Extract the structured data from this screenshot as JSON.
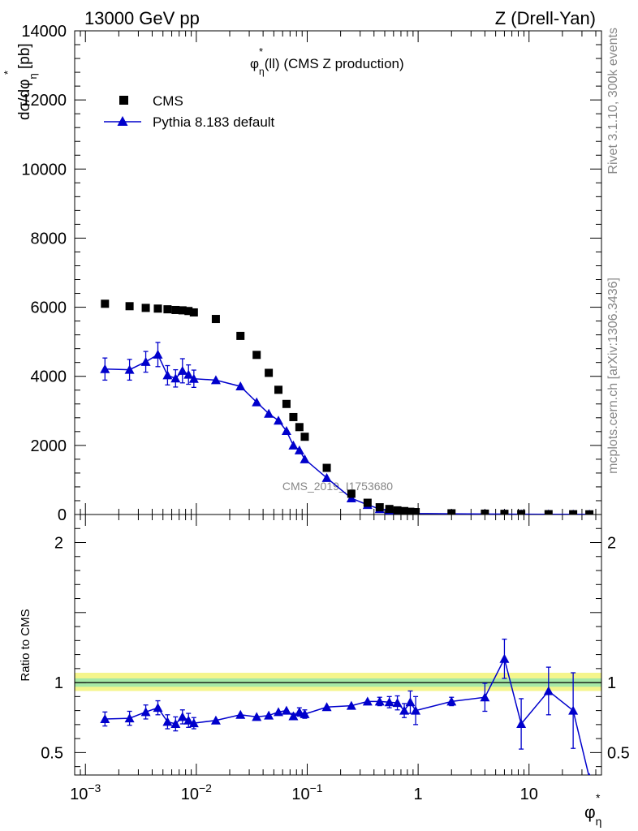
{
  "header": {
    "left": "13000 GeV pp",
    "right": "Z (Drell-Yan)"
  },
  "side_labels": {
    "rivet": "Rivet 3.1.10,  300k events",
    "mcplots": "mcplots.cern.ch [arXiv:1306.3436]"
  },
  "watermark": "CMS_2019_I1753680",
  "colors": {
    "mc": "#0000cc",
    "data": "#000000",
    "band_outer": "#f5f58c",
    "band_inner": "#a6e8a6",
    "gray_text": "#888888"
  },
  "chart_data": [
    {
      "type": "scatter",
      "title": "φ*η(ll) (CMS Z production)",
      "title_parts": {
        "main": "φ",
        "sup": "*",
        "sub": "η",
        "rest": "(ll) (CMS Z production)"
      },
      "ylabel": "dσ/dφ*η [pb]",
      "ylabel_parts": {
        "pre": "dσ/dφ",
        "sup": "*",
        "sub": "η",
        "post": " [pb]"
      },
      "xscale": "log",
      "xlim": [
        0.0008,
        45
      ],
      "ylim": [
        0,
        14000
      ],
      "y_ticks": [
        "0",
        "2000",
        "4000",
        "6000",
        "8000",
        "10000",
        "12000",
        "14000"
      ],
      "y_tick_values": [
        0,
        2000,
        4000,
        6000,
        8000,
        10000,
        12000,
        14000
      ],
      "legend_position": "top-left",
      "series": [
        {
          "name": "CMS",
          "marker": "square",
          "x": [
            0.0015,
            0.0025,
            0.0035,
            0.0045,
            0.0055,
            0.0065,
            0.0075,
            0.0085,
            0.0095,
            0.015,
            0.025,
            0.035,
            0.045,
            0.055,
            0.065,
            0.075,
            0.085,
            0.095,
            0.15,
            0.25,
            0.35,
            0.45,
            0.55,
            0.65,
            0.75,
            0.85,
            0.95,
            2,
            4,
            6,
            8.5,
            15,
            25,
            35
          ],
          "y": [
            6100,
            6030,
            5980,
            5960,
            5940,
            5920,
            5910,
            5890,
            5850,
            5660,
            5170,
            4620,
            4100,
            3610,
            3200,
            2820,
            2530,
            2250,
            1350,
            600,
            340,
            210,
            160,
            120,
            100,
            80,
            70,
            35,
            25,
            20,
            15,
            10,
            8,
            5
          ]
        },
        {
          "name": "Pythia 8.183 default",
          "marker": "triangle",
          "x": [
            0.0015,
            0.0025,
            0.0035,
            0.0045,
            0.0055,
            0.0065,
            0.0075,
            0.0085,
            0.0095,
            0.015,
            0.025,
            0.035,
            0.045,
            0.055,
            0.065,
            0.075,
            0.085,
            0.095,
            0.15,
            0.25,
            0.35,
            0.45,
            0.55,
            0.65,
            0.75,
            0.85,
            0.95,
            2,
            4,
            6,
            8.5,
            15,
            25,
            35
          ],
          "y": [
            4210,
            4190,
            4420,
            4630,
            4030,
            3940,
            4160,
            4050,
            3930,
            3890,
            3710,
            3250,
            2920,
            2720,
            2420,
            2000,
            1860,
            1600,
            1060,
            470,
            280,
            160,
            120,
            80,
            55,
            40,
            30,
            20,
            15,
            12,
            10,
            8,
            5,
            3
          ],
          "yerr": [
            320,
            300,
            300,
            350,
            280,
            250,
            350,
            280,
            250,
            0,
            0,
            0,
            0,
            0,
            0,
            0,
            0,
            0,
            0,
            0,
            0,
            0,
            0,
            0,
            0,
            0,
            0,
            0,
            0,
            0,
            0,
            0,
            0,
            0
          ]
        }
      ]
    },
    {
      "type": "line",
      "ylabel": "Ratio to CMS",
      "xlabel": "φ*η",
      "xlabel_parts": {
        "main": "φ",
        "sup": "*",
        "sub": "η"
      },
      "xscale": "log",
      "xlim": [
        0.0008,
        45
      ],
      "ylim": [
        0.34,
        2.2
      ],
      "y_ticks": [
        "0.5",
        "1",
        "2"
      ],
      "y_tick_values": [
        0.5,
        1,
        2
      ],
      "x_ticks": [
        "10",
        "10",
        "10",
        "1",
        "10"
      ],
      "x_tick_exps": [
        "−3",
        "−2",
        "−1",
        "",
        ""
      ],
      "x_tick_values": [
        0.001,
        0.01,
        0.1,
        1,
        10
      ],
      "band": {
        "inner": [
          0.97,
          1.03
        ],
        "outer": [
          0.94,
          1.07
        ]
      },
      "reference": 1.0,
      "series": [
        {
          "name": "Pythia 8.183 default",
          "x": [
            0.0015,
            0.0025,
            0.0035,
            0.0045,
            0.0055,
            0.0065,
            0.0075,
            0.0085,
            0.0095,
            0.015,
            0.025,
            0.035,
            0.045,
            0.055,
            0.065,
            0.075,
            0.085,
            0.095,
            0.15,
            0.25,
            0.35,
            0.45,
            0.55,
            0.65,
            0.75,
            0.85,
            0.95,
            2,
            4,
            6,
            8.5,
            15,
            25,
            35
          ],
          "y": [
            0.74,
            0.745,
            0.79,
            0.82,
            0.72,
            0.705,
            0.755,
            0.73,
            0.71,
            0.73,
            0.77,
            0.755,
            0.765,
            0.79,
            0.8,
            0.76,
            0.79,
            0.775,
            0.825,
            0.835,
            0.865,
            0.865,
            0.86,
            0.855,
            0.8,
            0.86,
            0.8,
            0.865,
            0.895,
            1.17,
            0.705,
            0.94,
            0.8,
            0.32
          ],
          "yerr": [
            0.05,
            0.05,
            0.05,
            0.05,
            0.05,
            0.05,
            0.05,
            0.05,
            0.04,
            0.0,
            0.0,
            0.0,
            0.0,
            0.0,
            0.0,
            0.02,
            0.03,
            0.03,
            0.0,
            0.0,
            0.0,
            0.03,
            0.04,
            0.05,
            0.05,
            0.08,
            0.1,
            0.03,
            0.1,
            0.14,
            0.18,
            0.17,
            0.27,
            0.0
          ]
        }
      ]
    }
  ]
}
